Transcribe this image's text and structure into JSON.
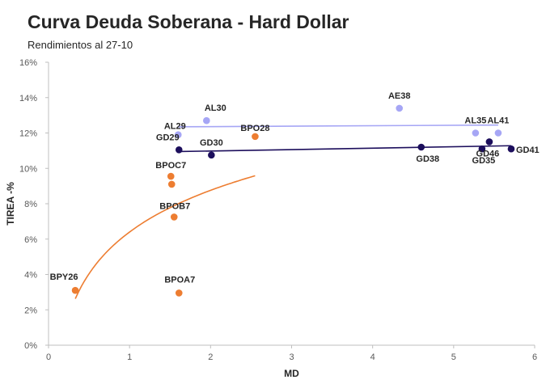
{
  "chart_data": {
    "type": "scatter",
    "title": "Curva Deuda Soberana - Hard Dollar",
    "subtitle": "Rendimientos al 27-10",
    "xlabel": "MD",
    "ylabel": "TIREA -%",
    "xlim": [
      0,
      6
    ],
    "ylim": [
      0,
      16
    ],
    "x_ticks": [
      "0",
      "1",
      "2",
      "3",
      "4",
      "5",
      "6"
    ],
    "y_ticks": [
      "0%",
      "2%",
      "4%",
      "6%",
      "8%",
      "10%",
      "12%",
      "14%",
      "16%"
    ],
    "grid": false,
    "legend": "none",
    "series": [
      {
        "color": "#a6a6f5",
        "points": [
          {
            "label": "AL29",
            "x": 1.6,
            "y": 11.9
          },
          {
            "label": "AL30",
            "x": 1.95,
            "y": 12.7
          },
          {
            "label": "AE38",
            "x": 4.33,
            "y": 13.4
          },
          {
            "label": "AL35",
            "x": 5.27,
            "y": 12.0
          },
          {
            "label": "AL41",
            "x": 5.55,
            "y": 12.0
          }
        ],
        "trend": {
          "kind": "linear",
          "x": [
            1.6,
            5.55
          ],
          "y": [
            12.35,
            12.45
          ]
        }
      },
      {
        "color": "#1c0e5c",
        "points": [
          {
            "label": "GD29",
            "x": 1.61,
            "y": 11.05
          },
          {
            "label": "GD30",
            "x": 2.01,
            "y": 10.75
          },
          {
            "label": "GD38",
            "x": 4.6,
            "y": 11.2
          },
          {
            "label": "GD35",
            "x": 5.35,
            "y": 11.1
          },
          {
            "label": "GD46",
            "x": 5.44,
            "y": 11.5
          },
          {
            "label": "GD41",
            "x": 5.71,
            "y": 11.1
          }
        ],
        "trend": {
          "kind": "linear",
          "x": [
            1.61,
            5.71
          ],
          "y": [
            10.95,
            11.28
          ]
        }
      },
      {
        "color": "#ed7d31",
        "points": [
          {
            "label": "BPY26",
            "x": 0.33,
            "y": 3.1
          },
          {
            "label": "BPOC7",
            "x": 1.51,
            "y": 9.55
          },
          {
            "label": "",
            "x": 1.52,
            "y": 9.1
          },
          {
            "label": "BPOB7",
            "x": 1.55,
            "y": 7.25
          },
          {
            "label": "BPOA7",
            "x": 1.61,
            "y": 2.95
          },
          {
            "label": "BPO28",
            "x": 2.55,
            "y": 11.8
          }
        ],
        "trend": {
          "kind": "log",
          "a": 6.4,
          "b": 3.4,
          "x_range": [
            0.33,
            2.55
          ]
        }
      }
    ]
  }
}
